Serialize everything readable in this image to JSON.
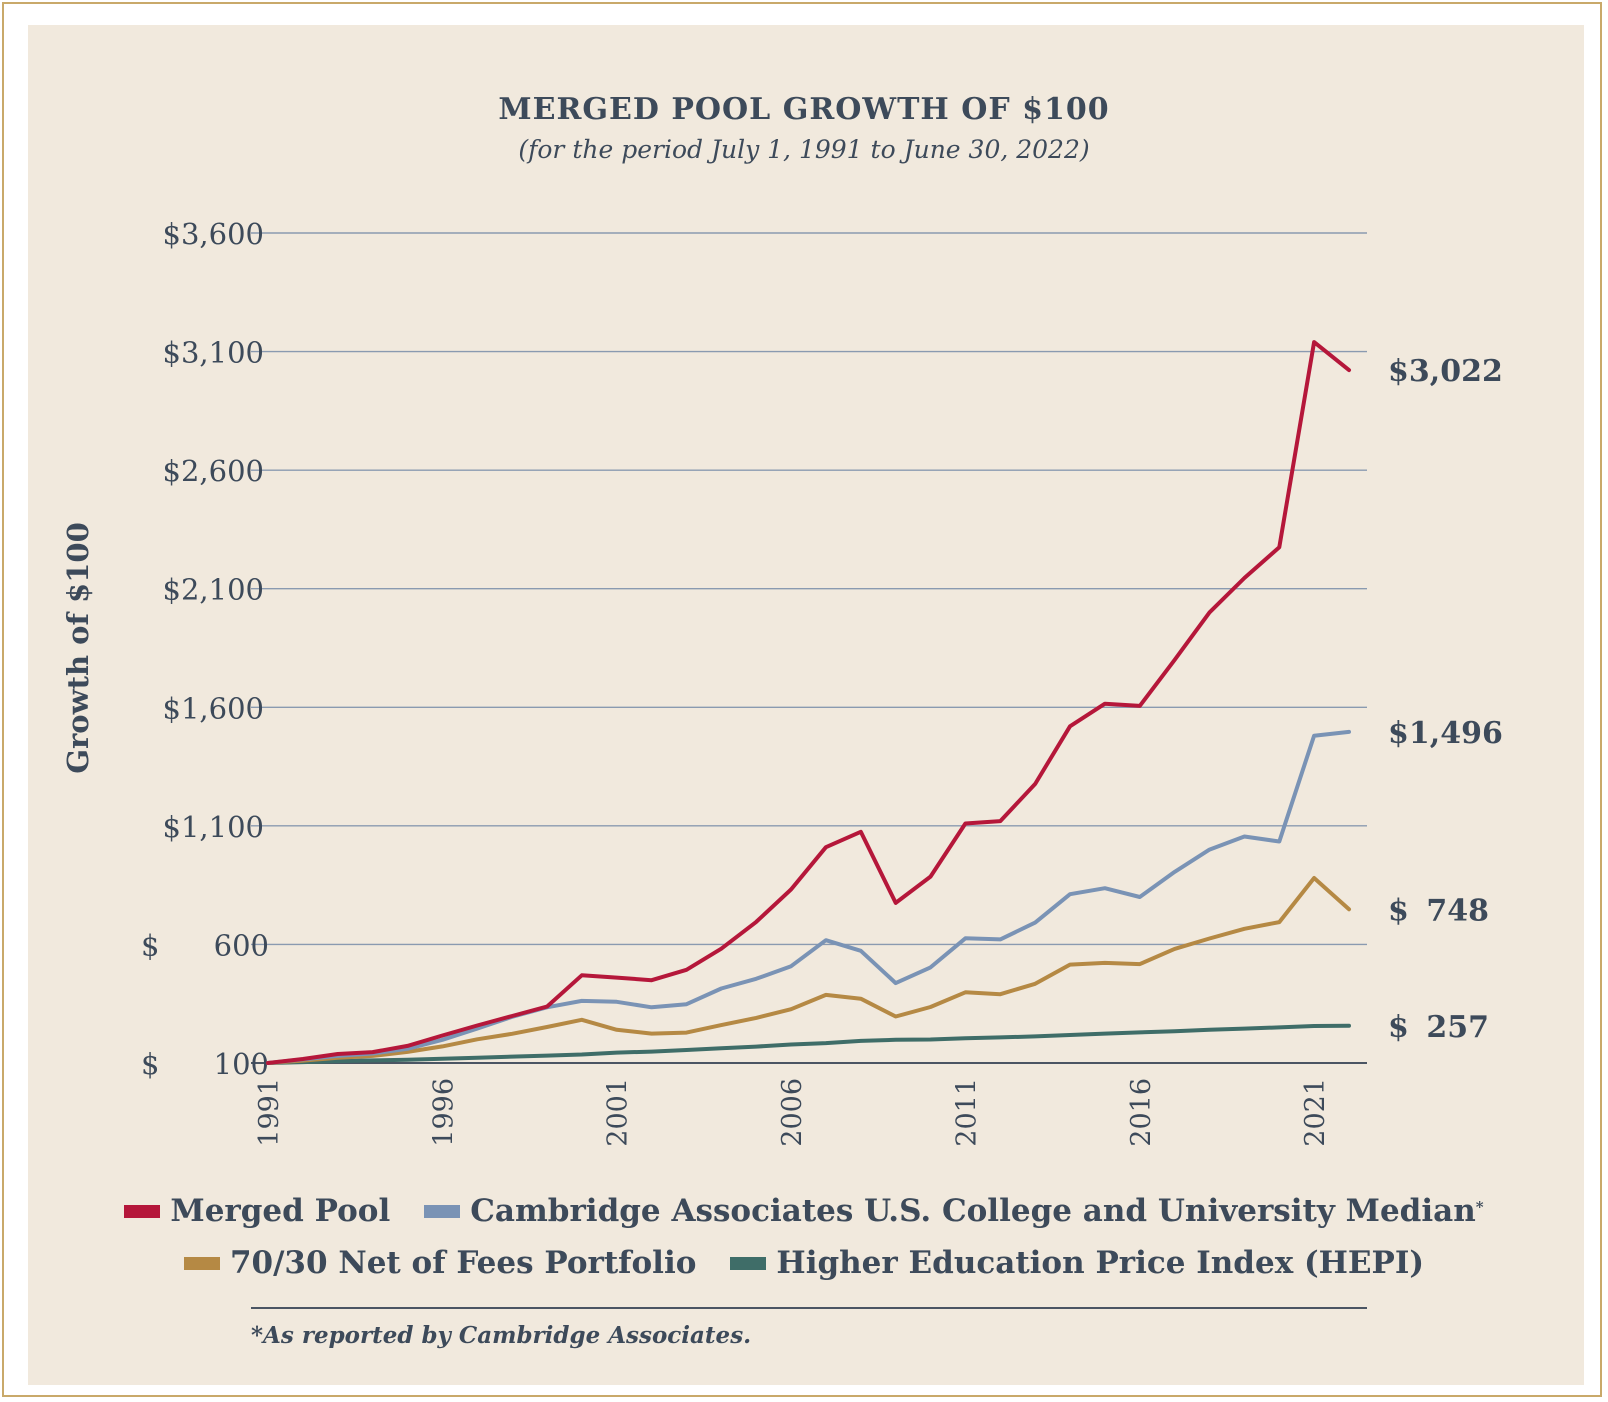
{
  "chart_data": {
    "type": "line",
    "title": "MERGED POOL GROWTH OF $100",
    "subtitle": "(for the period July 1, 1991 to June 30, 2022)",
    "ylabel": "Growth of $100",
    "xlabel": "",
    "ylim": [
      100,
      3600
    ],
    "xlim": [
      1991,
      2022
    ],
    "y_ticks": [
      100,
      600,
      1100,
      1600,
      2100,
      2600,
      3100,
      3600
    ],
    "y_tick_labels": [
      "$ 100",
      "$ 600",
      "$1,100",
      "$1,600",
      "$2,100",
      "$2,600",
      "$3,100",
      "$3,600"
    ],
    "x_ticks": [
      1991,
      1996,
      2001,
      2006,
      2011,
      2016,
      2021
    ],
    "x_tick_labels": [
      "1991",
      "1996",
      "2001",
      "2006",
      "2011",
      "2016",
      "2021"
    ],
    "grid": "horizontal",
    "legend_position": "bottom",
    "x": [
      1991,
      1992,
      1993,
      1994,
      1995,
      1996,
      1997,
      1998,
      1999,
      2000,
      2001,
      2002,
      2003,
      2004,
      2005,
      2006,
      2007,
      2008,
      2009,
      2010,
      2011,
      2012,
      2013,
      2014,
      2015,
      2016,
      2017,
      2018,
      2019,
      2020,
      2021,
      2022
    ],
    "series": [
      {
        "name": "Merged Pool",
        "color": "#b5173a",
        "values": [
          100,
          117,
          138,
          146,
          172,
          216,
          258,
          298,
          338,
          470,
          460,
          449,
          493,
          582,
          695,
          832,
          1010,
          1075,
          775,
          886,
          1110,
          1120,
          1277,
          1520,
          1615,
          1606,
          1800,
          2000,
          2145,
          2275,
          3140,
          3022
        ],
        "end_label": "$3,022"
      },
      {
        "name": "Cambridge Associates U.S. College and University Median",
        "footnote_mark": "*",
        "color": "#7a93b5",
        "values": [
          100,
          115,
          130,
          140,
          160,
          198,
          245,
          295,
          335,
          362,
          358,
          335,
          348,
          414,
          455,
          508,
          618,
          573,
          437,
          503,
          626,
          621,
          692,
          812,
          837,
          800,
          906,
          1000,
          1055,
          1034,
          1480,
          1496
        ],
        "end_label": "$1,496"
      },
      {
        "name": "70/30 Net of Fees Portfolio",
        "color": "#b58944",
        "values": [
          100,
          110,
          122,
          130,
          147,
          170,
          200,
          223,
          252,
          282,
          240,
          224,
          228,
          260,
          290,
          327,
          387,
          371,
          296,
          336,
          398,
          390,
          434,
          515,
          522,
          517,
          581,
          625,
          666,
          694,
          880,
          748
        ],
        "end_label": "$ 748"
      },
      {
        "name": "Higher Education Price Index (HEPI)",
        "color": "#3f6d68",
        "values": [
          100,
          104,
          108,
          111,
          114,
          118,
          122,
          127,
          131,
          136,
          144,
          148,
          155,
          162,
          169,
          178,
          184,
          193,
          198,
          199,
          204,
          208,
          212,
          218,
          224,
          229,
          234,
          240,
          245,
          250,
          256,
          257
        ],
        "end_label": "$ 257"
      }
    ]
  },
  "footnote": "*As reported by Cambridge Associates."
}
